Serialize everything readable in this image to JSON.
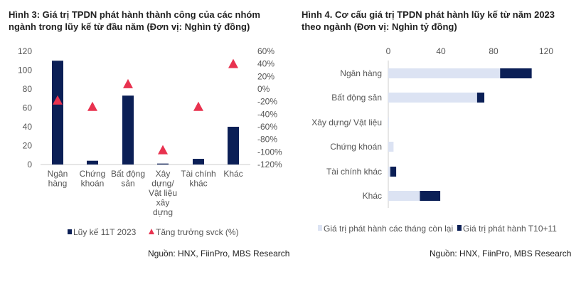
{
  "chart_data": [
    {
      "type": "bar",
      "title": "Hình 3: Giá trị TPDN phát hành thành công của các nhóm ngành trong lũy kế từ đầu năm (Đơn vị: Nghìn tỷ đồng)",
      "categories": [
        [
          "Ngân",
          "hàng"
        ],
        [
          "Chứng",
          "khoán"
        ],
        [
          "Bất động",
          "sản"
        ],
        [
          "Xây",
          "dựng/",
          "Vật liệu",
          "xây",
          "dựng"
        ],
        [
          "Tài chính",
          "khác"
        ],
        [
          "Khác"
        ]
      ],
      "series": [
        {
          "name": "Lũy kế 11T 2023",
          "axis": "left",
          "color": "#0b1f56",
          "values": [
            110,
            4,
            73,
            1,
            6,
            40
          ]
        },
        {
          "name": "Tăng trưởng svck (%)",
          "axis": "right",
          "marker": "triangle",
          "color": "#e8324f",
          "values": [
            -18,
            -28,
            8,
            -97,
            -28,
            40
          ]
        }
      ],
      "ylim": [
        0,
        120
      ],
      "yticks": [
        "0",
        "20",
        "40",
        "60",
        "80",
        "100",
        "120"
      ],
      "y2lim": [
        -120,
        60
      ],
      "y2ticks": [
        "-120%",
        "-100%",
        "-80%",
        "-60%",
        "-40%",
        "-20%",
        "0%",
        "20%",
        "40%",
        "60%"
      ],
      "legend": "bottom",
      "source": "Nguồn: HNX, FiinPro, MBS Research"
    },
    {
      "type": "bar",
      "orientation": "horizontal",
      "stacked": true,
      "title": "Hình 4. Cơ cấu giá trị TPDN phát hành lũy kế từ năm 2023 theo ngành (Đơn vị: Nghìn tỷ đồng)",
      "categories": [
        "Ngân hàng",
        "Bất động sản",
        "Xây dựng/ Vật liệu",
        "Chứng khoán",
        "Tài chính khác",
        "Khác"
      ],
      "series": [
        {
          "name": "Giá trị phát hành các tháng còn lại",
          "color": "#dce3f3",
          "values": [
            85,
            67.5,
            0.5,
            4,
            1.5,
            24
          ]
        },
        {
          "name": "Giá trị phát hành T10+11",
          "color": "#0b1f56",
          "values": [
            24,
            5.5,
            0,
            0,
            4.5,
            15.5
          ]
        }
      ],
      "xlim": [
        0,
        120
      ],
      "xticks": [
        "0",
        "40",
        "80",
        "120"
      ],
      "legend": "bottom",
      "source": "Nguồn: HNX, FiinPro, MBS Research"
    }
  ]
}
